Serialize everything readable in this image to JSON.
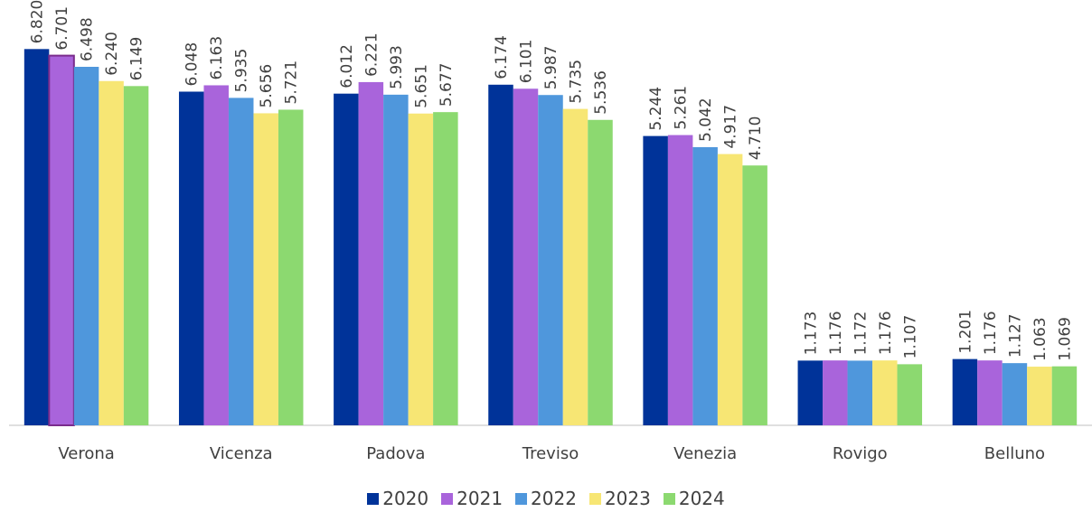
{
  "chart_data": {
    "type": "bar",
    "title": "",
    "xlabel": "",
    "ylabel": "",
    "ylim": [
      0,
      7.3
    ],
    "grid": false,
    "legend_position": "bottom",
    "categories": [
      "Verona",
      "Vicenza",
      "Padova",
      "Treviso",
      "Venezia",
      "Rovigo",
      "Belluno"
    ],
    "series": [
      {
        "name": "2020",
        "color": "#003399",
        "values": [
          6.82,
          6.048,
          6.012,
          6.174,
          5.244,
          1.173,
          1.201
        ],
        "labels": [
          "6.820",
          "6.048",
          "6.012",
          "6.174",
          "5.244",
          "1.173",
          "1.201"
        ]
      },
      {
        "name": "2021",
        "color": "#A964DB",
        "values": [
          6.701,
          6.163,
          6.221,
          6.101,
          5.261,
          1.176,
          1.176
        ],
        "labels": [
          "6.701",
          "6.163",
          "6.221",
          "6.101",
          "5.261",
          "1.176",
          "1.176"
        ]
      },
      {
        "name": "2022",
        "color": "#4F97DC",
        "values": [
          6.498,
          5.935,
          5.993,
          5.987,
          5.042,
          1.172,
          1.127
        ],
        "labels": [
          "6.498",
          "5.935",
          "5.993",
          "5.987",
          "5.042",
          "1.172",
          "1.127"
        ]
      },
      {
        "name": "2023",
        "color": "#F7E674",
        "values": [
          6.24,
          5.656,
          5.651,
          5.735,
          4.917,
          1.176,
          1.063
        ],
        "labels": [
          "6.240",
          "5.656",
          "5.651",
          "5.735",
          "4.917",
          "1.176",
          "1.063"
        ]
      },
      {
        "name": "2024",
        "color": "#8CD970",
        "values": [
          6.149,
          5.721,
          5.677,
          5.536,
          4.71,
          1.107,
          1.069
        ],
        "labels": [
          "6.149",
          "5.721",
          "5.677",
          "5.536",
          "4.710",
          "1.107",
          "1.069"
        ]
      }
    ]
  }
}
